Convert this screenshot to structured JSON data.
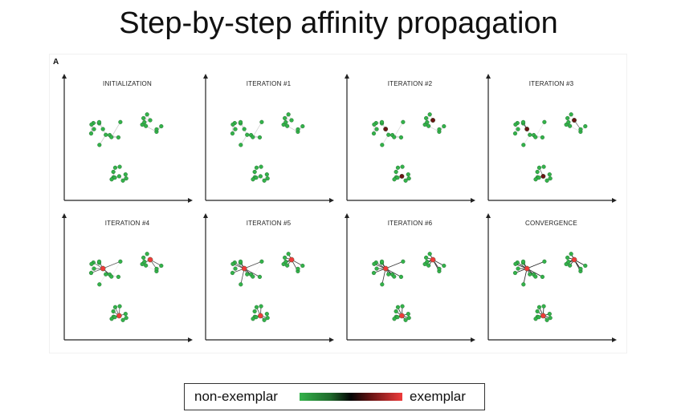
{
  "title": "Step-by-step affinity propagation",
  "panel_letter": "A",
  "panels": [
    {
      "label": "INITIALIZATION"
    },
    {
      "label": "ITERATION #1"
    },
    {
      "label": "ITERATION #2"
    },
    {
      "label": "ITERATION #3"
    },
    {
      "label": "ITERATION #4"
    },
    {
      "label": "ITERATION #5"
    },
    {
      "label": "ITERATION #6"
    },
    {
      "label": "CONVERGENCE"
    }
  ],
  "legend": {
    "left_label": "non-exemplar",
    "right_label": "exemplar"
  },
  "colors": {
    "non_exemplar": "#33b24a",
    "mid": "#050505",
    "exemplar": "#ee3b3b",
    "mesh": "#c8c8c8"
  }
}
